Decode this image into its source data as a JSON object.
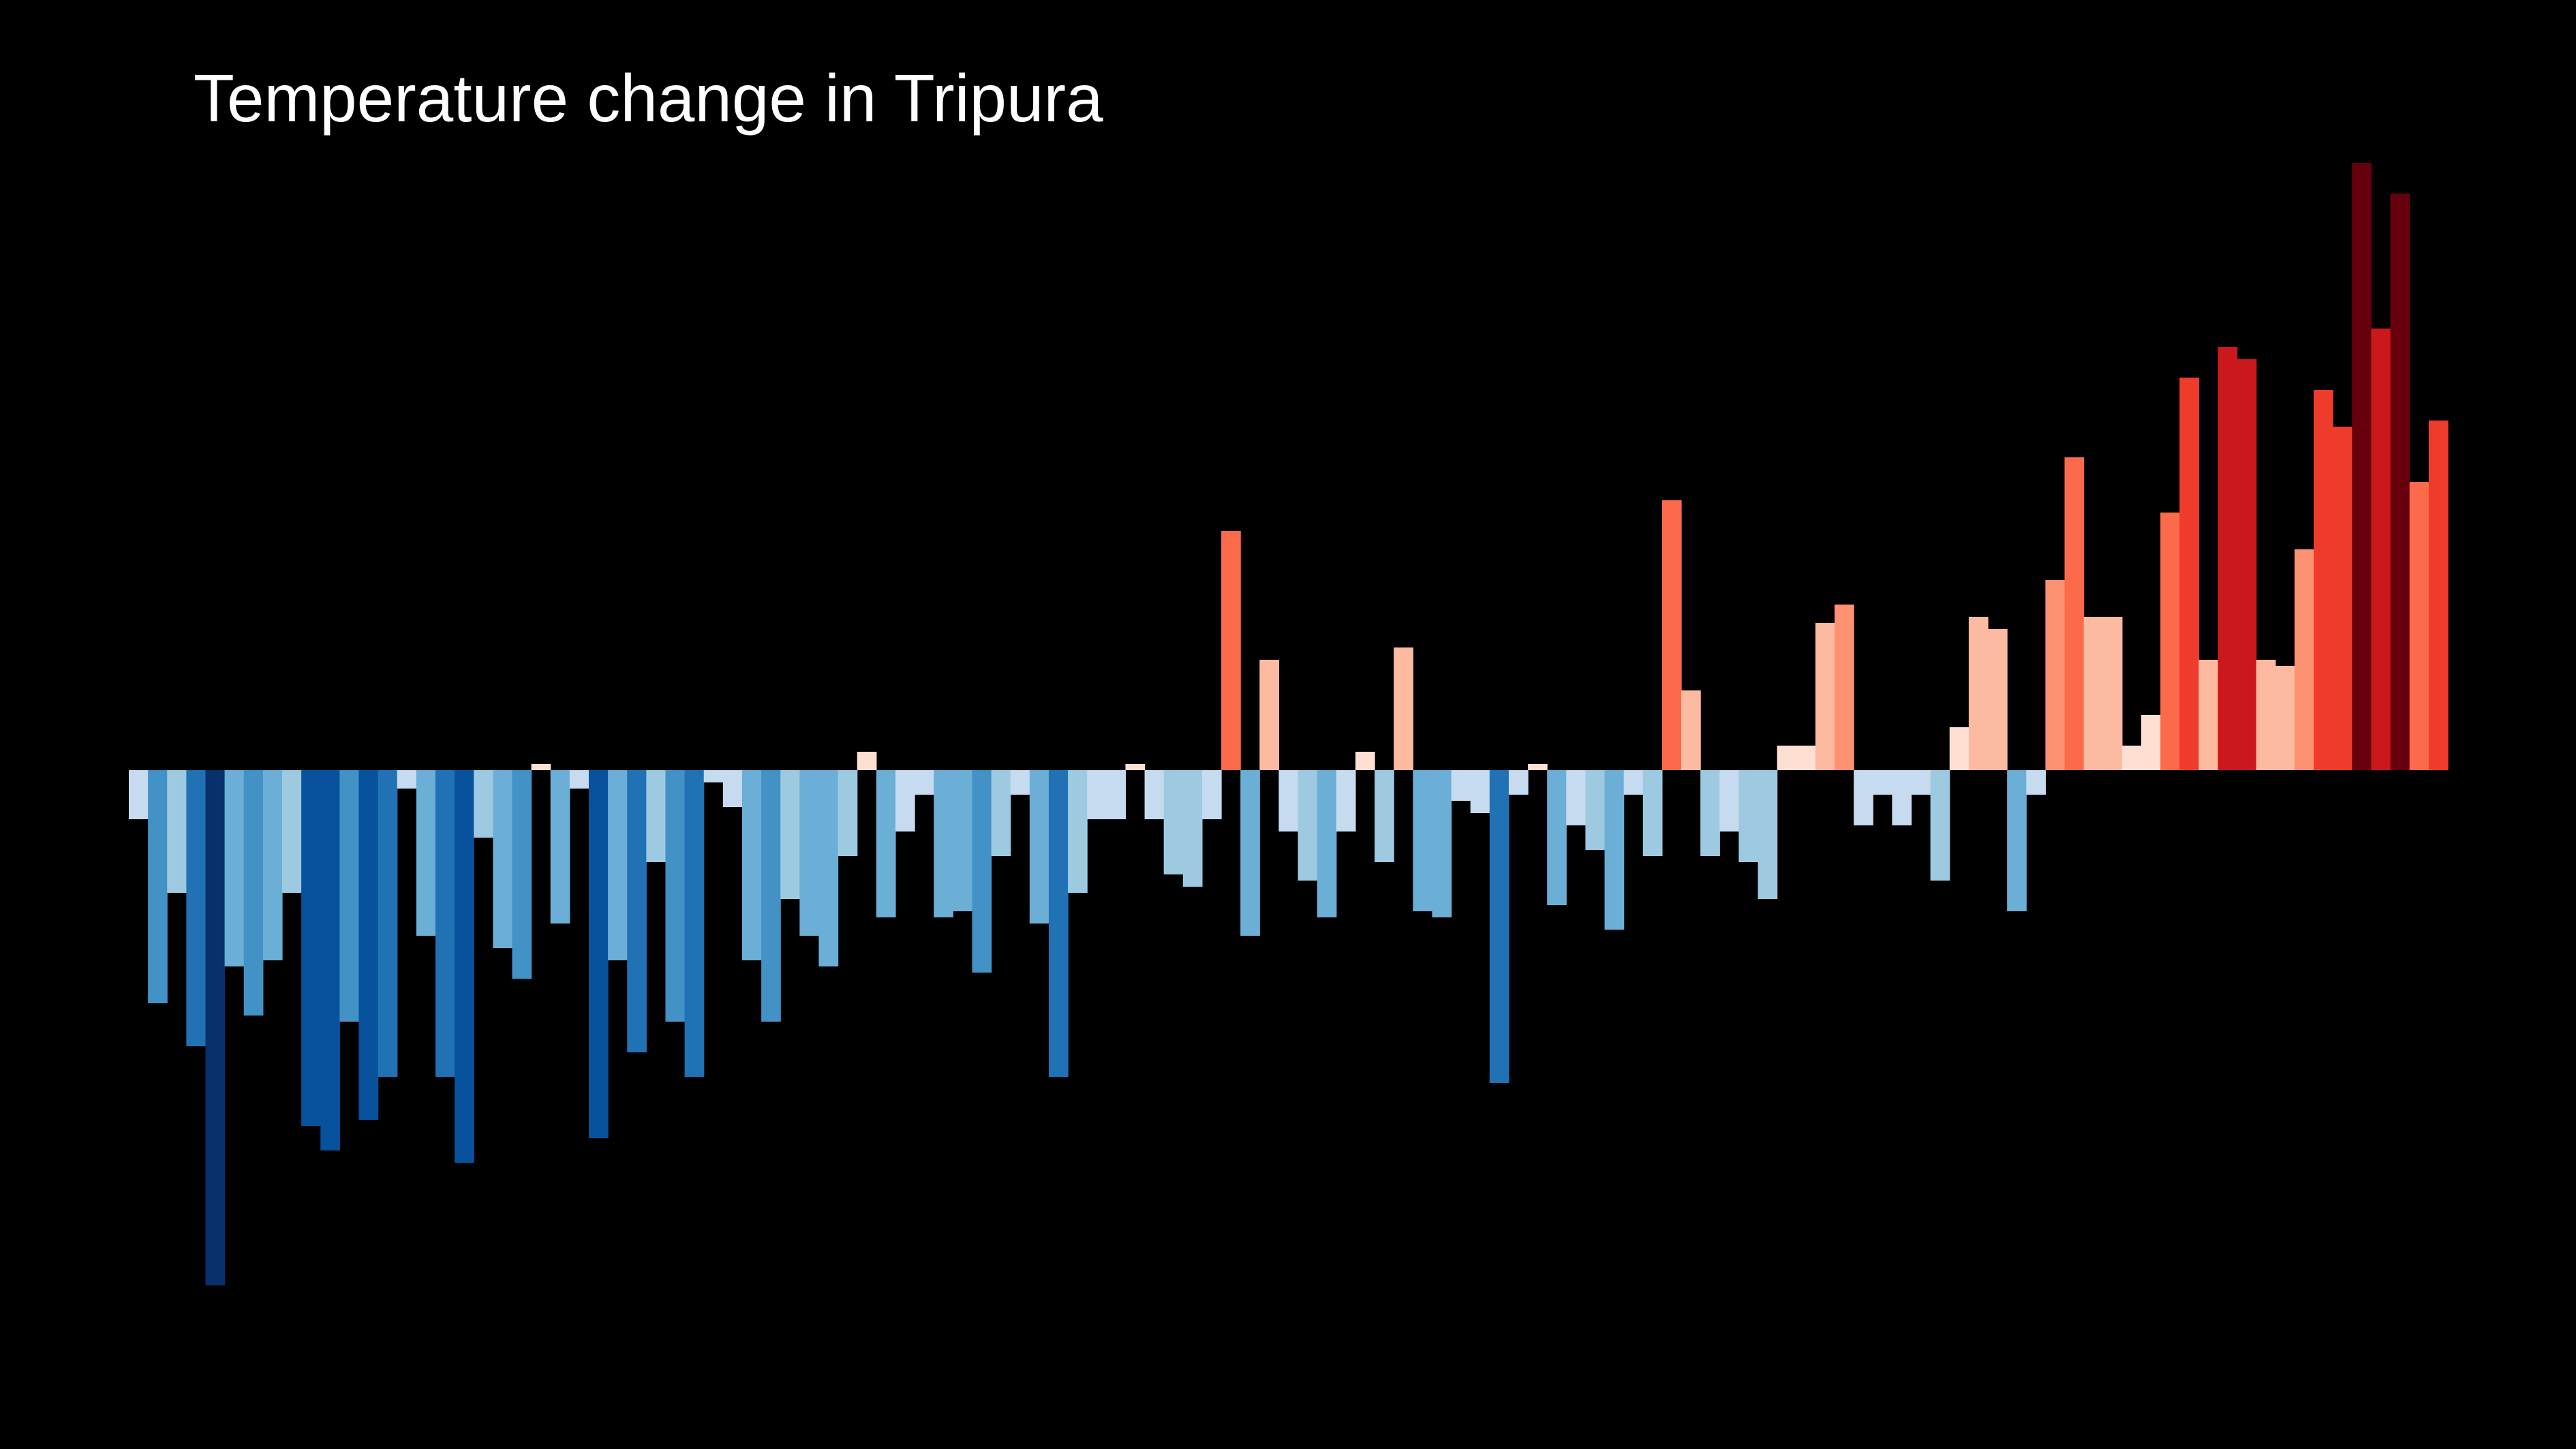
{
  "title": "Temperature change in Tripura",
  "chart_data": {
    "type": "bar",
    "title": "Temperature change in Tripura",
    "xlabel": "",
    "ylabel": "",
    "grid": false,
    "legend": "none",
    "background": "#000000",
    "ylim": [
      -0.85,
      1.0
    ],
    "values": [
      -0.08,
      -0.38,
      -0.2,
      -0.45,
      -0.84,
      -0.32,
      -0.4,
      -0.31,
      -0.2,
      -0.58,
      -0.62,
      -0.41,
      -0.57,
      -0.5,
      -0.03,
      -0.27,
      -0.5,
      -0.64,
      -0.11,
      -0.29,
      -0.34,
      0.01,
      -0.25,
      -0.03,
      -0.6,
      -0.31,
      -0.46,
      -0.15,
      -0.41,
      -0.5,
      -0.02,
      -0.06,
      -0.31,
      -0.41,
      -0.21,
      -0.27,
      -0.32,
      -0.14,
      0.03,
      -0.24,
      -0.1,
      -0.04,
      -0.24,
      -0.23,
      -0.33,
      -0.14,
      -0.04,
      -0.25,
      -0.5,
      -0.2,
      -0.08,
      -0.08,
      0.01,
      -0.08,
      -0.17,
      -0.19,
      -0.08,
      0.39,
      -0.27,
      0.18,
      -0.1,
      -0.18,
      -0.24,
      -0.1,
      0.03,
      -0.15,
      0.2,
      -0.23,
      -0.24,
      -0.05,
      -0.07,
      -0.51,
      -0.04,
      0.01,
      -0.22,
      -0.09,
      -0.13,
      -0.26,
      -0.04,
      -0.14,
      0.44,
      0.13,
      -0.14,
      -0.1,
      -0.15,
      -0.21,
      0.04,
      0.04,
      0.24,
      0.27,
      -0.09,
      -0.04,
      -0.09,
      -0.04,
      -0.18,
      0.07,
      0.25,
      0.23,
      -0.23,
      -0.04,
      0.31,
      0.51,
      0.25,
      0.25,
      0.04,
      0.09,
      0.42,
      0.64,
      0.18,
      0.69,
      0.67,
      0.18,
      0.17,
      0.36,
      0.62,
      0.56,
      0.99,
      0.72,
      0.94,
      0.47,
      0.57
    ],
    "color_scale": {
      "negative_colors": [
        "#c6dbef",
        "#9ecae1",
        "#6baed6",
        "#4292c6",
        "#2171b5",
        "#08519c",
        "#08306b"
      ],
      "positive_colors": [
        "#fee0d2",
        "#fcbba1",
        "#fc9272",
        "#fb6a4a",
        "#ef3b2c",
        "#cb181d",
        "#67000d"
      ]
    }
  }
}
